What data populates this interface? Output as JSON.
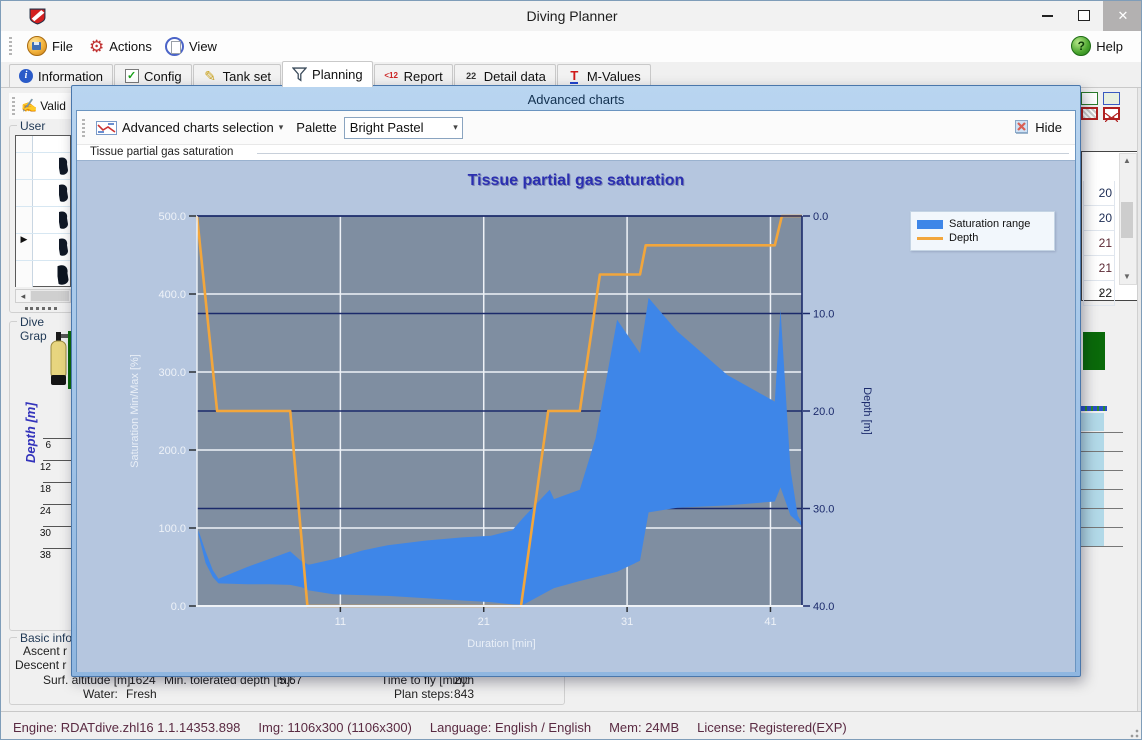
{
  "win": {
    "title": "Diving Planner"
  },
  "toolbar": {
    "file": "File",
    "actions": "Actions",
    "view": "View",
    "help": "Help"
  },
  "tabs": [
    {
      "label": "Information",
      "icon_text": "i"
    },
    {
      "label": "Config",
      "icon_text": "✓"
    },
    {
      "label": "Tank set",
      "icon_text": "✎"
    },
    {
      "label": "Planning",
      "icon_text": ""
    },
    {
      "label": "Report",
      "icon_text": "<12"
    },
    {
      "label": "Detail data",
      "icon_text": "22"
    },
    {
      "label": "M-Values",
      "icon_text": "T"
    }
  ],
  "left_panel": {
    "validate_label": "Valid",
    "user_dive_caption": "User dive",
    "dive_graph_caption": "Dive Grap",
    "depth_axis_label": "Depth [m]",
    "depth_ticks": [
      "6",
      "12",
      "18",
      "24",
      "30",
      "38"
    ],
    "basic_info_caption": "Basic info",
    "rows": {
      "ascent": "Ascent r",
      "descent": "Descent r",
      "surf_label": "Surf. altitude [m]:",
      "surf_value": "1624",
      "min_depth_label": "Min. tolerated depth [m]:",
      "min_depth_value": "5.67",
      "fly_label": "Time to fly [min]:",
      "fly_value": "20h",
      "water_label": "Water:",
      "water_value": "Fresh",
      "plan_label": "Plan steps:",
      "plan_value": "843"
    }
  },
  "right_panel": {
    "cell_values": [
      "20",
      "20",
      "21",
      "21",
      "22"
    ],
    "cell_colors": [
      "#1c2c54",
      "#1c2c54",
      "#5c2a35",
      "#5c2a35",
      "#1a1a1a"
    ]
  },
  "modal": {
    "title": "Advanced charts",
    "selection_button": "Advanced charts selection",
    "palette_label": "Palette",
    "palette_value": "Bright Pastel",
    "hide_button": "Hide",
    "tab_label": "Tissue partial gas saturation"
  },
  "chart_data": {
    "type": "area",
    "title": "Tissue partial gas saturation",
    "xlabel": "Duration [min]",
    "ylabel_left": "Saturation Min/Max [%]",
    "ylabel_right": "Depth [m]",
    "x_range": [
      1,
      43.2
    ],
    "x_ticks": [
      [
        11,
        "11"
      ],
      [
        21,
        "21"
      ],
      [
        31,
        "31"
      ],
      [
        41,
        "41"
      ]
    ],
    "sat_range": [
      0,
      500
    ],
    "sat_ticks": [
      [
        0,
        "0.0"
      ],
      [
        100,
        "100.0"
      ],
      [
        200,
        "200.0"
      ],
      [
        300,
        "300.0"
      ],
      [
        400,
        "400.0"
      ],
      [
        500,
        "500.0"
      ]
    ],
    "depth_range": [
      0,
      40
    ],
    "depth_ticks": [
      [
        0,
        "0.0"
      ],
      [
        10,
        "10.0"
      ],
      [
        20,
        "20.0"
      ],
      [
        30,
        "30.0"
      ],
      [
        40,
        "40.0"
      ]
    ],
    "legend": [
      {
        "label": "Saturation range",
        "type": "area",
        "color": "#3e86e8"
      },
      {
        "label": "Depth",
        "type": "line",
        "color": "#f2a63c"
      }
    ],
    "colors": {
      "chart_bg": "#b5c6df",
      "plot_bg": "#7f8ea1",
      "band": "#3e86e8",
      "depth_line": "#f2a63c",
      "grid_sat": "#eef2f7",
      "grid_depth": "#1b2a6b",
      "tick_dark": "#2c3036",
      "label_light": "#eef2f8",
      "label_navy": "#1b2a6b",
      "title_text": "#2b2fb0"
    },
    "series": {
      "depth_profile": [
        [
          1,
          0
        ],
        [
          2.4,
          20
        ],
        [
          7.5,
          20
        ],
        [
          8.7,
          40
        ],
        [
          23.6,
          40
        ],
        [
          25.5,
          20
        ],
        [
          27.7,
          20
        ],
        [
          29.1,
          6
        ],
        [
          31.9,
          6
        ],
        [
          32.3,
          3
        ],
        [
          41.3,
          3
        ],
        [
          41.8,
          0
        ],
        [
          43.2,
          0
        ]
      ],
      "saturation_band": [
        [
          1.1,
          92,
          97
        ],
        [
          1.6,
          55,
          70
        ],
        [
          2.1,
          37,
          46
        ],
        [
          2.5,
          29,
          35
        ],
        [
          4.5,
          28,
          50
        ],
        [
          6,
          28,
          60
        ],
        [
          7.5,
          27,
          70
        ],
        [
          8.3,
          24,
          57
        ],
        [
          8.8,
          20,
          53
        ],
        [
          10.5,
          15,
          60
        ],
        [
          12.5,
          14,
          71
        ],
        [
          14.3,
          13,
          78
        ],
        [
          17,
          10,
          84
        ],
        [
          19.5,
          7,
          88
        ],
        [
          21.5,
          5,
          90
        ],
        [
          23,
          2,
          97
        ],
        [
          23.7,
          1,
          112
        ],
        [
          25.6,
          20,
          149
        ],
        [
          25.9,
          23,
          137
        ],
        [
          27.7,
          32,
          149
        ],
        [
          28.8,
          37,
          215
        ],
        [
          30.3,
          44,
          367
        ],
        [
          31.9,
          58,
          324
        ],
        [
          32.5,
          120,
          395
        ],
        [
          34.5,
          126,
          352
        ],
        [
          38,
          129,
          296
        ],
        [
          41.3,
          134,
          262
        ],
        [
          41.7,
          152,
          380
        ],
        [
          42.4,
          116,
          175
        ],
        [
          42.9,
          108,
          116
        ],
        [
          43.2,
          102,
          106
        ]
      ]
    }
  },
  "status_bar": {
    "segments": [
      "Engine: RDATdive.zhl16 1.1.14353.898",
      "Img: 1106x300 (1106x300)",
      "Language: English / English",
      "Mem: 24MB",
      "License: Registered(EXP)"
    ]
  }
}
